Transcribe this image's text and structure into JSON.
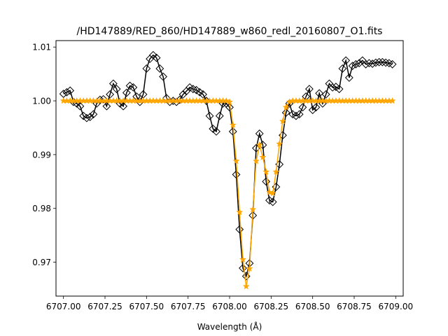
{
  "chart_data": {
    "type": "line",
    "title": "/HD147889/RED_860/HD147889_w860_redl_20160807_O1.fits",
    "xlabel": "Wavelength (Å)",
    "ylabel": "",
    "xlim": [
      6706.955,
      6709.045
    ],
    "ylim": [
      0.9637,
      1.0112
    ],
    "grid": false,
    "legend": "none",
    "x_ticks": [
      6707.0,
      6707.25,
      6707.5,
      6707.75,
      6708.0,
      6708.25,
      6708.5,
      6708.75,
      6709.0
    ],
    "x_tick_labels": [
      "6707.00",
      "6707.25",
      "6707.50",
      "6707.75",
      "6708.00",
      "6708.25",
      "6708.50",
      "6708.75",
      "6709.00"
    ],
    "y_ticks": [
      0.97,
      0.98,
      0.99,
      1.0,
      1.01
    ],
    "y_tick_labels": [
      "0.97",
      "0.98",
      "0.99",
      "1.00",
      "1.01"
    ],
    "series": [
      {
        "color": "#000000",
        "marker": "diamond-open",
        "x": [
          6707.0,
          6707.02,
          6707.04,
          6707.06,
          6707.08,
          6707.1,
          6707.12,
          6707.14,
          6707.16,
          6707.18,
          6707.2,
          6707.22,
          6707.24,
          6707.26,
          6707.28,
          6707.3,
          6707.32,
          6707.34,
          6707.36,
          6707.38,
          6707.4,
          6707.42,
          6707.44,
          6707.46,
          6707.48,
          6707.5,
          6707.52,
          6707.54,
          6707.56,
          6707.58,
          6707.6,
          6707.62,
          6707.64,
          6707.66,
          6707.68,
          6707.7,
          6707.72,
          6707.74,
          6707.76,
          6707.78,
          6707.8,
          6707.82,
          6707.84,
          6707.86,
          6707.88,
          6707.9,
          6707.92,
          6707.94,
          6707.96,
          6707.98,
          6708.0,
          6708.02,
          6708.04,
          6708.06,
          6708.08,
          6708.1,
          6708.12,
          6708.14,
          6708.16,
          6708.18,
          6708.2,
          6708.22,
          6708.24,
          6708.26,
          6708.28,
          6708.3,
          6708.32,
          6708.34,
          6708.36,
          6708.38,
          6708.4,
          6708.42,
          6708.44,
          6708.46,
          6708.48,
          6708.5,
          6708.52,
          6708.54,
          6708.56,
          6708.58,
          6708.6,
          6708.62,
          6708.64,
          6708.66,
          6708.68,
          6708.7,
          6708.72,
          6708.74,
          6708.76,
          6708.78,
          6708.8,
          6708.82,
          6708.84,
          6708.86,
          6708.88,
          6708.9,
          6708.92,
          6708.94,
          6708.96,
          6708.98
        ],
        "y": [
          1.0013,
          1.0016,
          1.0019,
          0.9998,
          0.9995,
          0.999,
          0.9972,
          0.9968,
          0.997,
          0.9975,
          0.9995,
          1.0002,
          1.0003,
          0.999,
          1.0012,
          1.0032,
          1.0022,
          0.9995,
          0.999,
          1.0015,
          1.0028,
          1.0025,
          1.0008,
          0.9998,
          1.0012,
          1.006,
          1.0078,
          1.0085,
          1.008,
          1.006,
          1.0045,
          1.0005,
          0.9998,
          1.0,
          0.9998,
          1.0002,
          1.0012,
          1.0018,
          1.0025,
          1.0022,
          1.002,
          1.0016,
          1.0012,
          1.0,
          0.9972,
          0.9948,
          0.9943,
          0.9972,
          0.9995,
          0.9995,
          0.9988,
          0.9943,
          0.9863,
          0.9761,
          0.9689,
          0.9674,
          0.9698,
          0.9787,
          0.9912,
          0.9939,
          0.9918,
          0.985,
          0.9815,
          0.9812,
          0.984,
          0.9882,
          0.9936,
          0.9978,
          0.9995,
          0.9975,
          0.9972,
          0.9975,
          0.9988,
          1.0008,
          1.0022,
          0.9983,
          0.9988,
          1.0014,
          0.9995,
          1.0012,
          1.0032,
          1.0025,
          1.0026,
          1.0022,
          1.006,
          1.0075,
          1.0043,
          1.0065,
          1.0068,
          1.007,
          1.0075,
          1.0068,
          1.007,
          1.0069,
          1.0071,
          1.0072,
          1.0072,
          1.0071,
          1.007,
          1.0068
        ]
      },
      {
        "color": "#ffa500",
        "marker": "star-filled",
        "x": [
          6707.0,
          6707.02,
          6707.04,
          6707.06,
          6707.08,
          6707.1,
          6707.12,
          6707.14,
          6707.16,
          6707.18,
          6707.2,
          6707.22,
          6707.24,
          6707.26,
          6707.28,
          6707.3,
          6707.32,
          6707.34,
          6707.36,
          6707.38,
          6707.4,
          6707.42,
          6707.44,
          6707.46,
          6707.48,
          6707.5,
          6707.52,
          6707.54,
          6707.56,
          6707.58,
          6707.6,
          6707.62,
          6707.64,
          6707.66,
          6707.68,
          6707.7,
          6707.72,
          6707.74,
          6707.76,
          6707.78,
          6707.8,
          6707.82,
          6707.84,
          6707.86,
          6707.88,
          6707.9,
          6707.92,
          6707.94,
          6707.96,
          6707.98,
          6708.0,
          6708.02,
          6708.04,
          6708.06,
          6708.08,
          6708.1,
          6708.12,
          6708.14,
          6708.16,
          6708.18,
          6708.2,
          6708.22,
          6708.24,
          6708.26,
          6708.28,
          6708.3,
          6708.32,
          6708.34,
          6708.36,
          6708.38,
          6708.4,
          6708.42,
          6708.44,
          6708.46,
          6708.48,
          6708.5,
          6708.52,
          6708.54,
          6708.56,
          6708.58,
          6708.6,
          6708.62,
          6708.64,
          6708.66,
          6708.68,
          6708.7,
          6708.72,
          6708.74,
          6708.76,
          6708.78,
          6708.8,
          6708.82,
          6708.84,
          6708.86,
          6708.88,
          6708.9,
          6708.92,
          6708.94,
          6708.96,
          6708.98
        ],
        "y": [
          1.0,
          1.0,
          1.0,
          1.0,
          1.0,
          1.0,
          1.0,
          1.0,
          1.0,
          1.0,
          1.0,
          1.0,
          1.0,
          1.0,
          1.0,
          1.0,
          1.0,
          1.0,
          1.0,
          1.0,
          1.0,
          1.0,
          1.0,
          1.0,
          1.0,
          1.0,
          1.0,
          1.0,
          1.0,
          1.0,
          1.0,
          1.0,
          1.0,
          1.0,
          1.0,
          1.0,
          1.0,
          1.0,
          1.0,
          1.0,
          1.0,
          1.0,
          1.0,
          1.0,
          1.0,
          1.0,
          1.0,
          1.0,
          1.0,
          1.0,
          0.9998,
          0.9955,
          0.9888,
          0.9793,
          0.9705,
          0.9655,
          0.9688,
          0.9798,
          0.9888,
          0.9918,
          0.9895,
          0.9868,
          0.983,
          0.9828,
          0.9868,
          0.992,
          0.9962,
          0.9988,
          0.9998,
          1.0,
          1.0,
          1.0,
          1.0,
          1.0,
          1.0,
          1.0,
          1.0,
          1.0,
          1.0,
          1.0,
          1.0,
          1.0,
          1.0,
          1.0,
          1.0,
          1.0,
          1.0,
          1.0,
          1.0,
          1.0,
          1.0,
          1.0,
          1.0,
          1.0,
          1.0,
          1.0,
          1.0,
          1.0,
          1.0,
          1.0
        ]
      }
    ]
  }
}
